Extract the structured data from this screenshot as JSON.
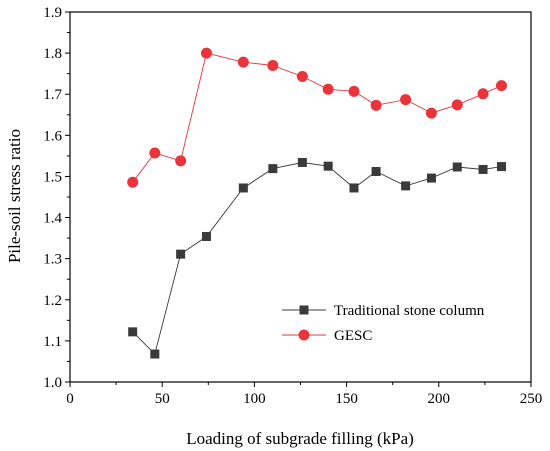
{
  "chart_data": {
    "type": "line",
    "xlabel": "Loading of subgrade filling (kPa)",
    "ylabel": "Pile-soil stress ratio",
    "xlim": [
      0,
      250
    ],
    "ylim": [
      1.0,
      1.9
    ],
    "xticks": [
      "0",
      "50",
      "100",
      "150",
      "200",
      "250"
    ],
    "yticks": [
      "1.0",
      "1.1",
      "1.2",
      "1.3",
      "1.4",
      "1.5",
      "1.6",
      "1.7",
      "1.8",
      "1.9"
    ],
    "grid": false,
    "legend_position": "lower-right",
    "series": [
      {
        "name": "Traditional stone column",
        "color": "#3a3a3a",
        "marker": "square",
        "x": [
          34,
          46,
          60,
          74,
          94,
          110,
          126,
          140,
          154,
          166,
          182,
          196,
          210,
          224,
          234
        ],
        "y": [
          1.122,
          1.068,
          1.311,
          1.354,
          1.472,
          1.519,
          1.534,
          1.525,
          1.472,
          1.512,
          1.477,
          1.496,
          1.523,
          1.517,
          1.524
        ]
      },
      {
        "name": "GESC",
        "color": "#e8343a",
        "marker": "circle",
        "x": [
          34,
          46,
          60,
          74,
          94,
          110,
          126,
          140,
          154,
          166,
          182,
          196,
          210,
          224,
          234
        ],
        "y": [
          1.486,
          1.557,
          1.538,
          1.8,
          1.778,
          1.77,
          1.743,
          1.712,
          1.707,
          1.673,
          1.687,
          1.654,
          1.674,
          1.701,
          1.721
        ]
      }
    ]
  }
}
